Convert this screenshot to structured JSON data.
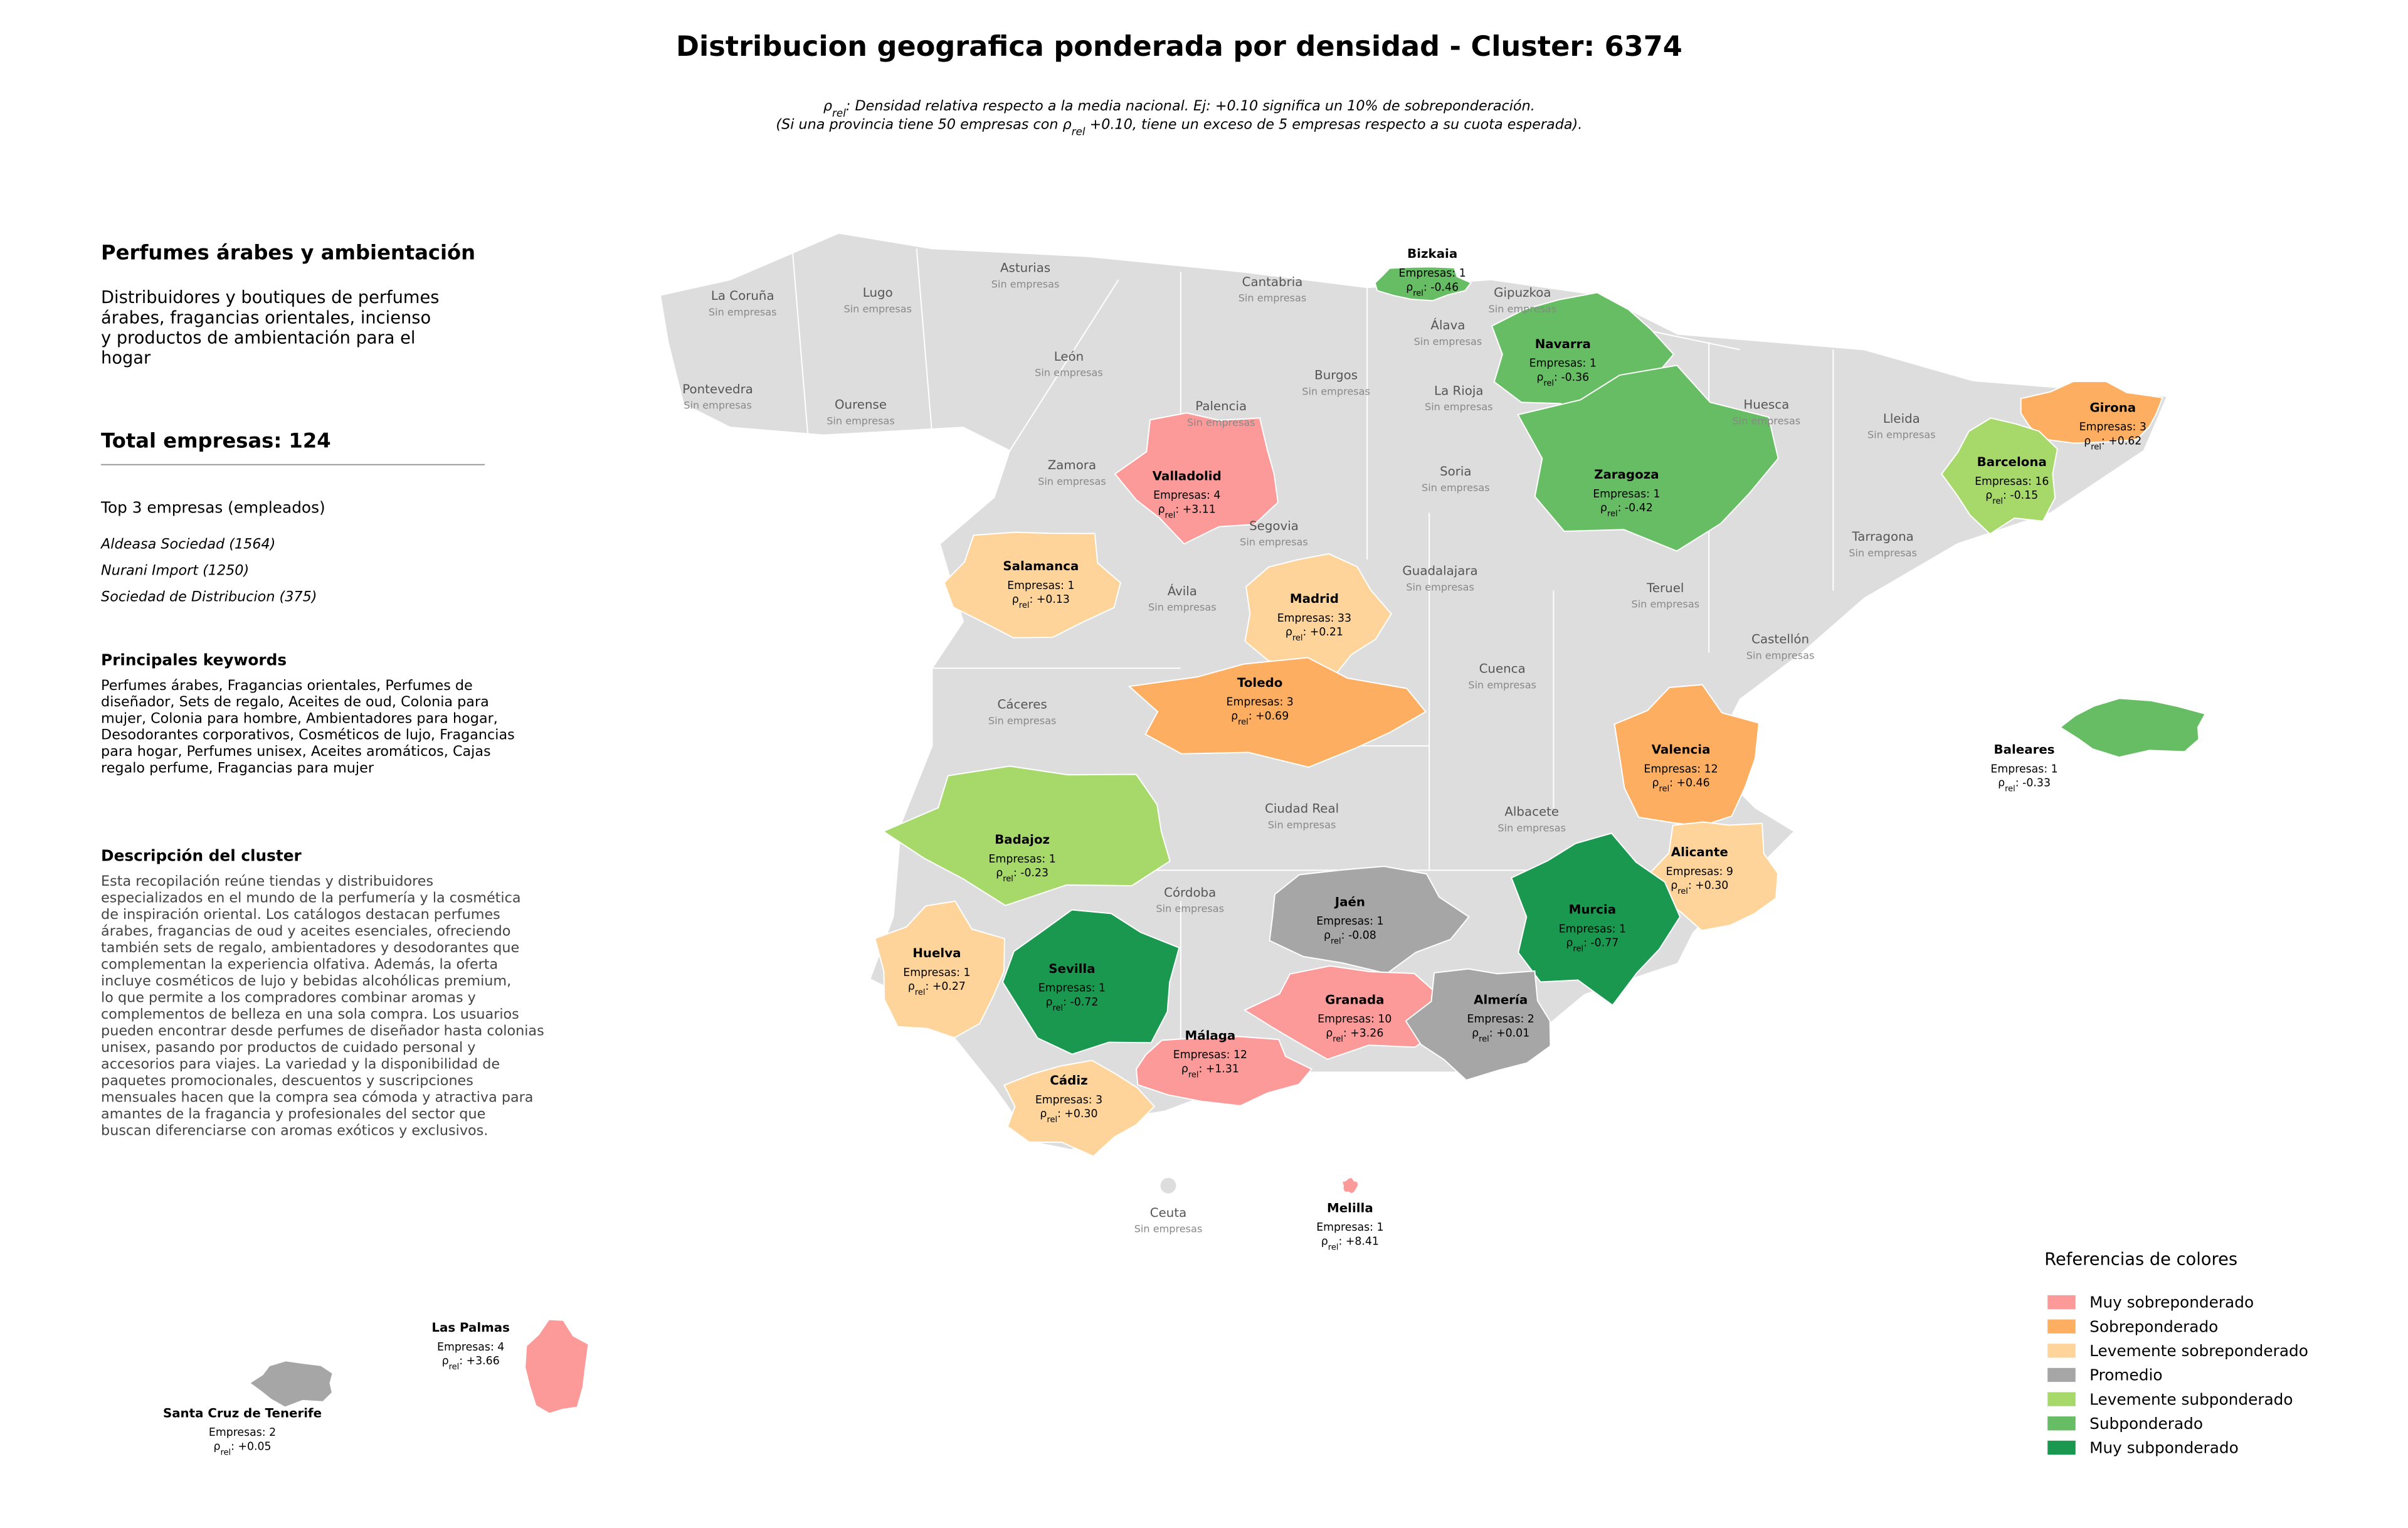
{
  "title": "Distribucion geografica ponderada por densidad - Cluster: 6374",
  "subtitle_lines": [
    [
      "ρ",
      "rel",
      ": Densidad relativa respecto a la media nacional. Ej: +0.10 significa un 10% de sobreponderación."
    ],
    [
      "(Si una provincia tiene 50 empresas con ρ",
      "rel",
      " +0.10, tiene un exceso de 5 empresas respecto a su cuota esperada)."
    ]
  ],
  "sidebar": {
    "heading": "Perfumes árabes y ambientación",
    "description_lines": [
      "Distribuidores y boutiques de perfumes",
      "árabes, fragancias orientales, incienso",
      "y productos de ambientación para el",
      "hogar"
    ],
    "total": "Total empresas: 124",
    "top_title": "Top 3 empresas (empleados)",
    "top_companies": [
      "Aldeasa Sociedad (1564)",
      "Nurani Import (1250)",
      "Sociedad de Distribucion (375)"
    ],
    "keywords_title": "Principales keywords",
    "keywords_lines": [
      "Perfumes árabes, Fragancias orientales, Perfumes de",
      "diseñador, Sets de regalo, Aceites de oud, Colonia para",
      "mujer, Colonia para hombre, Ambientadores para hogar,",
      "Desodorantes corporativos, Cosméticos de lujo, Fragancias",
      "para hogar, Perfumes unisex, Aceites aromáticos, Cajas",
      "regalo perfume, Fragancias para mujer"
    ],
    "cluster_title": "Descripción del cluster",
    "cluster_lines": [
      "Esta recopilación reúne tiendas y distribuidores",
      "especializados en el mundo de la perfumería y la cosmética",
      "de inspiración oriental. Los catálogos destacan perfumes",
      "árabes, fragancias de oud y aceites esenciales, ofreciendo",
      "también sets de regalo, ambientadores y desodorantes que",
      "complementan la experiencia olfativa. Además, la oferta",
      "incluye cosméticos de lujo y bebidas alcohólicas premium,",
      "lo que permite a los compradores combinar aromas y",
      "complementos de belleza en una sola compra. Los usuarios",
      "pueden encontrar desde perfumes de diseñador hasta colonias",
      "unisex, pasando por productos de cuidado personal y",
      "accesorios para viajes. La variedad y la disponibilidad de",
      "paquetes promocionales, descuentos y suscripciones",
      "mensuales hacen que la compra sea cómoda y atractiva para",
      "amantes de la fragancia y profesionales del sector que",
      "buscan diferenciarse con aromas exóticos y exclusivos."
    ]
  },
  "map": {
    "rho_symbol": "ρ",
    "rho_sub": "rel",
    "no_data_label": "Sin empresas",
    "no_data_color": "#dddddd",
    "provinces": [
      {
        "name": "Bizkaia",
        "empresas": "Empresas: 1",
        "rho": ": -0.46",
        "color": "#66bd63"
      },
      {
        "name": "Navarra",
        "empresas": "Empresas: 1",
        "rho": ": -0.36",
        "color": "#66bd63"
      },
      {
        "name": "Zaragoza",
        "empresas": "Empresas: 1",
        "rho": ": -0.42",
        "color": "#66bd63"
      },
      {
        "name": "Girona",
        "empresas": "Empresas: 3",
        "rho": ": +0.62",
        "color": "#fdae61"
      },
      {
        "name": "Barcelona",
        "empresas": "Empresas: 16",
        "rho": ": -0.15",
        "color": "#a6d96a"
      },
      {
        "name": "Valladolid",
        "empresas": "Empresas: 4",
        "rho": ": +3.11",
        "color": "#fb9a99"
      },
      {
        "name": "Salamanca",
        "empresas": "Empresas: 1",
        "rho": ": +0.13",
        "color": "#fed49a"
      },
      {
        "name": "Madrid",
        "empresas": "Empresas: 33",
        "rho": ": +0.21",
        "color": "#fed49a"
      },
      {
        "name": "Toledo",
        "empresas": "Empresas: 3",
        "rho": ": +0.69",
        "color": "#fdae61"
      },
      {
        "name": "Valencia",
        "empresas": "Empresas: 12",
        "rho": ": +0.46",
        "color": "#fdae61"
      },
      {
        "name": "Baleares",
        "empresas": "Empresas: 1",
        "rho": ": -0.33",
        "color": "#66bd63"
      },
      {
        "name": "Badajoz",
        "empresas": "Empresas: 1",
        "rho": ": -0.23",
        "color": "#a6d96a"
      },
      {
        "name": "Alicante",
        "empresas": "Empresas: 9",
        "rho": ": +0.30",
        "color": "#fed49a"
      },
      {
        "name": "Jaén",
        "empresas": "Empresas: 1",
        "rho": ": -0.08",
        "color": "#a6a6a6"
      },
      {
        "name": "Murcia",
        "empresas": "Empresas: 1",
        "rho": ": -0.77",
        "color": "#1a9850"
      },
      {
        "name": "Huelva",
        "empresas": "Empresas: 1",
        "rho": ": +0.27",
        "color": "#fed49a"
      },
      {
        "name": "Sevilla",
        "empresas": "Empresas: 1",
        "rho": ": -0.72",
        "color": "#1a9850"
      },
      {
        "name": "Granada",
        "empresas": "Empresas: 10",
        "rho": ": +3.26",
        "color": "#fb9a99"
      },
      {
        "name": "Almería",
        "empresas": "Empresas: 2",
        "rho": ": +0.01",
        "color": "#a6a6a6"
      },
      {
        "name": "Málaga",
        "empresas": "Empresas: 12",
        "rho": ": +1.31",
        "color": "#fb9a99"
      },
      {
        "name": "Cádiz",
        "empresas": "Empresas: 3",
        "rho": ": +0.30",
        "color": "#fed49a"
      },
      {
        "name": "Melilla",
        "empresas": "Empresas: 1",
        "rho": ": +8.41",
        "color": "#fb9a99"
      },
      {
        "name": "Las Palmas",
        "empresas": "Empresas: 4",
        "rho": ": +3.66",
        "color": "#fb9a99"
      },
      {
        "name": "Santa Cruz de Tenerife",
        "empresas": "Empresas: 2",
        "rho": ": +0.05",
        "color": "#a6a6a6"
      },
      {
        "name": "La Coruña"
      },
      {
        "name": "Lugo"
      },
      {
        "name": "Asturias"
      },
      {
        "name": "Cantabria"
      },
      {
        "name": "Gipuzkoa"
      },
      {
        "name": "Álava"
      },
      {
        "name": "Pontevedra"
      },
      {
        "name": "Ourense"
      },
      {
        "name": "León"
      },
      {
        "name": "Palencia"
      },
      {
        "name": "Burgos"
      },
      {
        "name": "La Rioja"
      },
      {
        "name": "Huesca"
      },
      {
        "name": "Lleida"
      },
      {
        "name": "Zamora"
      },
      {
        "name": "Soria"
      },
      {
        "name": "Segovia"
      },
      {
        "name": "Tarragona"
      },
      {
        "name": "Ávila"
      },
      {
        "name": "Guadalajara"
      },
      {
        "name": "Teruel"
      },
      {
        "name": "Castellón"
      },
      {
        "name": "Cáceres"
      },
      {
        "name": "Cuenca"
      },
      {
        "name": "Ciudad Real"
      },
      {
        "name": "Albacete"
      },
      {
        "name": "Córdoba"
      },
      {
        "name": "Ceuta"
      }
    ]
  },
  "legend": {
    "title": "Referencias de colores",
    "items": [
      {
        "label": "Muy sobreponderado",
        "color": "#fb9a99"
      },
      {
        "label": "Sobreponderado",
        "color": "#fdae61"
      },
      {
        "label": "Levemente sobreponderado",
        "color": "#fed49a"
      },
      {
        "label": "Promedio",
        "color": "#a6a6a6"
      },
      {
        "label": "Levemente subponderado",
        "color": "#a6d96a"
      },
      {
        "label": "Subponderado",
        "color": "#66bd63"
      },
      {
        "label": "Muy subponderado",
        "color": "#1a9850"
      }
    ]
  }
}
